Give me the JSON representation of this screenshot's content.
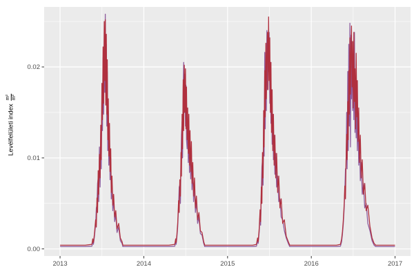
{
  "figure": {
    "background": "#FFFFFF",
    "panel_background": "#EBEBEB",
    "grid_color": "#FFFFFF",
    "tick_mark_color": "#333333",
    "tick_label_color": "#4D4D4D"
  },
  "y_axis": {
    "title_text": "Levélfelületi index",
    "title_frac_numerator": "m²",
    "title_frac_denominator": "m²",
    "tick_labels": [
      "0.00",
      "0.01",
      "0.02"
    ],
    "tick_values": [
      0,
      0.01,
      0.02
    ],
    "minor_values": [
      0.005,
      0.015,
      0.025
    ]
  },
  "x_axis": {
    "tick_labels": [
      "2013",
      "2014",
      "2015",
      "2016",
      "2017"
    ],
    "tick_values": [
      2013,
      2014,
      2015,
      2016,
      2017
    ],
    "minor_values": [
      2013.5,
      2014.5,
      2015.5,
      2016.5
    ]
  },
  "chart_data": {
    "type": "line",
    "title": "",
    "xlabel": "",
    "ylabel": "Levélfelületi index m²/m²",
    "legend": "none",
    "grid": true,
    "x_range_panel": [
      2012.81,
      2017.185
    ],
    "y_range_panel": [
      -0.00078,
      0.0266
    ],
    "xticks": [
      2013,
      2014,
      2015,
      2016,
      2017
    ],
    "yticks": [
      0,
      0.01,
      0.02
    ],
    "series_meta": [
      {
        "name": "red-line",
        "color": "#B0303E",
        "width": 1.3
      },
      {
        "name": "purple-line",
        "color": "#8E5C9E",
        "width": 1.3
      }
    ],
    "columns": [
      "time_decimal_year",
      "red_series",
      "purple_series"
    ],
    "points": [
      [
        2013.0,
        0.0004,
        0.00025
      ],
      [
        2013.15,
        0.0004,
        0.00025
      ],
      [
        2013.3,
        0.0004,
        0.00025
      ],
      [
        2013.38,
        0.0005,
        0.0003
      ],
      [
        2013.39,
        0.0011,
        0.0008
      ],
      [
        2013.398,
        0.0007,
        0.0005
      ],
      [
        2013.41,
        0.0016,
        0.0013
      ],
      [
        2013.425,
        0.0032,
        0.0027
      ],
      [
        2013.433,
        0.0024,
        0.0045
      ],
      [
        2013.44,
        0.0056,
        0.0048
      ],
      [
        2013.448,
        0.004,
        0.0072
      ],
      [
        2013.455,
        0.0086,
        0.0078
      ],
      [
        2013.462,
        0.006,
        0.0052
      ],
      [
        2013.47,
        0.0104,
        0.0112
      ],
      [
        2013.478,
        0.0078,
        0.0068
      ],
      [
        2013.486,
        0.0136,
        0.0128
      ],
      [
        2013.492,
        0.0098,
        0.0088
      ],
      [
        2013.5,
        0.0182,
        0.017
      ],
      [
        2013.506,
        0.0142,
        0.013
      ],
      [
        2013.514,
        0.0222,
        0.021
      ],
      [
        2013.52,
        0.016,
        0.0148
      ],
      [
        2013.528,
        0.025,
        0.0238
      ],
      [
        2013.534,
        0.0185,
        0.0172
      ],
      [
        2013.54,
        0.0252,
        0.0258
      ],
      [
        2013.546,
        0.0158,
        0.017
      ],
      [
        2013.552,
        0.0236,
        0.0225
      ],
      [
        2013.558,
        0.0148,
        0.0135
      ],
      [
        2013.564,
        0.0208,
        0.0195
      ],
      [
        2013.57,
        0.012,
        0.0108
      ],
      [
        2013.576,
        0.0165,
        0.0152
      ],
      [
        2013.582,
        0.0102,
        0.0092
      ],
      [
        2013.59,
        0.0138,
        0.0126
      ],
      [
        2013.597,
        0.0085,
        0.0076
      ],
      [
        2013.605,
        0.011,
        0.01
      ],
      [
        2013.612,
        0.0062,
        0.0055
      ],
      [
        2013.62,
        0.008,
        0.0072
      ],
      [
        2013.63,
        0.0048,
        0.0042
      ],
      [
        2013.64,
        0.006,
        0.0054
      ],
      [
        2013.652,
        0.0035,
        0.003
      ],
      [
        2013.665,
        0.0042,
        0.0037
      ],
      [
        2013.68,
        0.0022,
        0.0018
      ],
      [
        2013.7,
        0.0028,
        0.0024
      ],
      [
        2013.72,
        0.0012,
        0.0009
      ],
      [
        2013.74,
        0.0008,
        0.0006
      ],
      [
        2013.75,
        0.0004,
        0.00025
      ],
      [
        2013.85,
        0.0004,
        0.00025
      ],
      [
        2014.0,
        0.0004,
        0.00025
      ],
      [
        2014.15,
        0.0004,
        0.00025
      ],
      [
        2014.3,
        0.0004,
        0.00025
      ],
      [
        2014.37,
        0.0005,
        0.0003
      ],
      [
        2014.38,
        0.0011,
        0.0008
      ],
      [
        2014.386,
        0.0007,
        0.0005
      ],
      [
        2014.395,
        0.0016,
        0.0013
      ],
      [
        2014.405,
        0.0029,
        0.0025
      ],
      [
        2014.415,
        0.0053,
        0.0047
      ],
      [
        2014.422,
        0.004,
        0.0068
      ],
      [
        2014.43,
        0.0076,
        0.007
      ],
      [
        2014.437,
        0.0058,
        0.005
      ],
      [
        2014.444,
        0.0106,
        0.0098
      ],
      [
        2014.45,
        0.008,
        0.0125
      ],
      [
        2014.457,
        0.0148,
        0.014
      ],
      [
        2014.463,
        0.011,
        0.01
      ],
      [
        2014.47,
        0.0186,
        0.0176
      ],
      [
        2014.476,
        0.013,
        0.0205
      ],
      [
        2014.483,
        0.0202,
        0.015
      ],
      [
        2014.49,
        0.015,
        0.0192
      ],
      [
        2014.497,
        0.0198,
        0.0135
      ],
      [
        2014.503,
        0.0132,
        0.018
      ],
      [
        2014.51,
        0.0178,
        0.012
      ],
      [
        2014.517,
        0.012,
        0.011
      ],
      [
        2014.524,
        0.0155,
        0.0145
      ],
      [
        2014.531,
        0.0105,
        0.0095
      ],
      [
        2014.538,
        0.0148,
        0.0138
      ],
      [
        2014.545,
        0.0092,
        0.0084
      ],
      [
        2014.552,
        0.013,
        0.012
      ],
      [
        2014.56,
        0.0085,
        0.0077
      ],
      [
        2014.568,
        0.0118,
        0.0108
      ],
      [
        2014.576,
        0.0072,
        0.0065
      ],
      [
        2014.585,
        0.0095,
        0.0086
      ],
      [
        2014.595,
        0.0058,
        0.0052
      ],
      [
        2014.605,
        0.0078,
        0.007
      ],
      [
        2014.616,
        0.0045,
        0.004
      ],
      [
        2014.628,
        0.0058,
        0.0052
      ],
      [
        2014.642,
        0.0032,
        0.0028
      ],
      [
        2014.658,
        0.004,
        0.0035
      ],
      [
        2014.675,
        0.002,
        0.0017
      ],
      [
        2014.695,
        0.0018,
        0.0015
      ],
      [
        2014.715,
        0.0008,
        0.0006
      ],
      [
        2014.728,
        0.0004,
        0.00025
      ],
      [
        2014.85,
        0.0004,
        0.00025
      ],
      [
        2015.0,
        0.0004,
        0.00025
      ],
      [
        2015.15,
        0.0004,
        0.00025
      ],
      [
        2015.3,
        0.0004,
        0.00025
      ],
      [
        2015.345,
        0.0005,
        0.0003
      ],
      [
        2015.358,
        0.0012,
        0.0009
      ],
      [
        2015.366,
        0.0008,
        0.0006
      ],
      [
        2015.378,
        0.0023,
        0.0019
      ],
      [
        2015.388,
        0.0043,
        0.0038
      ],
      [
        2015.395,
        0.003,
        0.0026
      ],
      [
        2015.403,
        0.0068,
        0.0062
      ],
      [
        2015.41,
        0.005,
        0.009
      ],
      [
        2015.417,
        0.0106,
        0.0098
      ],
      [
        2015.424,
        0.0078,
        0.007
      ],
      [
        2015.431,
        0.0152,
        0.0142
      ],
      [
        2015.437,
        0.0112,
        0.0102
      ],
      [
        2015.444,
        0.0196,
        0.0216
      ],
      [
        2015.45,
        0.0145,
        0.0132
      ],
      [
        2015.457,
        0.0226,
        0.0215
      ],
      [
        2015.463,
        0.0165,
        0.0152
      ],
      [
        2015.47,
        0.0212,
        0.024
      ],
      [
        2015.477,
        0.0238,
        0.0175
      ],
      [
        2015.483,
        0.0175,
        0.0225
      ],
      [
        2015.49,
        0.0255,
        0.0195
      ],
      [
        2015.497,
        0.0185,
        0.0238
      ],
      [
        2015.504,
        0.0232,
        0.016
      ],
      [
        2015.511,
        0.015,
        0.0205
      ],
      [
        2015.518,
        0.0205,
        0.0138
      ],
      [
        2015.525,
        0.0128,
        0.0175
      ],
      [
        2015.532,
        0.0175,
        0.0115
      ],
      [
        2015.54,
        0.0108,
        0.0148
      ],
      [
        2015.548,
        0.0148,
        0.0098
      ],
      [
        2015.556,
        0.0092,
        0.0125
      ],
      [
        2015.565,
        0.0125,
        0.0082
      ],
      [
        2015.575,
        0.0078,
        0.0105
      ],
      [
        2015.586,
        0.0105,
        0.0068
      ],
      [
        2015.598,
        0.0062,
        0.008
      ],
      [
        2015.611,
        0.008,
        0.0052
      ],
      [
        2015.625,
        0.0045,
        0.0055
      ],
      [
        2015.64,
        0.0055,
        0.0035
      ],
      [
        2015.658,
        0.0028,
        0.0032
      ],
      [
        2015.678,
        0.0032,
        0.002
      ],
      [
        2015.7,
        0.0014,
        0.0012
      ],
      [
        2015.725,
        0.0008,
        0.0006
      ],
      [
        2015.742,
        0.0004,
        0.00025
      ],
      [
        2015.85,
        0.0004,
        0.00025
      ],
      [
        2016.0,
        0.0004,
        0.00025
      ],
      [
        2016.15,
        0.0004,
        0.00025
      ],
      [
        2016.3,
        0.0004,
        0.00025
      ],
      [
        2016.348,
        0.0005,
        0.0003
      ],
      [
        2016.362,
        0.0011,
        0.0008
      ],
      [
        2016.372,
        0.0019,
        0.0016
      ],
      [
        2016.382,
        0.0031,
        0.0027
      ],
      [
        2016.392,
        0.0049,
        0.0044
      ],
      [
        2016.4,
        0.0069,
        0.0063
      ],
      [
        2016.408,
        0.0055,
        0.0088
      ],
      [
        2016.415,
        0.0096,
        0.0088
      ],
      [
        2016.422,
        0.0126,
        0.015
      ],
      [
        2016.428,
        0.0098,
        0.0088
      ],
      [
        2016.435,
        0.0162,
        0.0195
      ],
      [
        2016.441,
        0.012,
        0.0108
      ],
      [
        2016.448,
        0.0196,
        0.0225
      ],
      [
        2016.454,
        0.0148,
        0.0135
      ],
      [
        2016.461,
        0.0232,
        0.0248
      ],
      [
        2016.467,
        0.017,
        0.0112
      ],
      [
        2016.474,
        0.0215,
        0.0235
      ],
      [
        2016.48,
        0.0245,
        0.0165
      ],
      [
        2016.487,
        0.0178,
        0.0228
      ],
      [
        2016.494,
        0.0228,
        0.0152
      ],
      [
        2016.501,
        0.0155,
        0.021
      ],
      [
        2016.508,
        0.0238,
        0.0142
      ],
      [
        2016.515,
        0.0162,
        0.0238
      ],
      [
        2016.522,
        0.0198,
        0.0128
      ],
      [
        2016.529,
        0.0132,
        0.0185
      ],
      [
        2016.536,
        0.0215,
        0.0122
      ],
      [
        2016.543,
        0.0145,
        0.0168
      ],
      [
        2016.55,
        0.0185,
        0.0108
      ],
      [
        2016.558,
        0.0118,
        0.0145
      ],
      [
        2016.566,
        0.0155,
        0.0092
      ],
      [
        2016.575,
        0.0095,
        0.012
      ],
      [
        2016.585,
        0.0125,
        0.0075
      ],
      [
        2016.596,
        0.0078,
        0.0095
      ],
      [
        2016.608,
        0.0098,
        0.006
      ],
      [
        2016.622,
        0.006,
        0.0072
      ],
      [
        2016.638,
        0.0072,
        0.0045
      ],
      [
        2016.655,
        0.0042,
        0.005
      ],
      [
        2016.675,
        0.0048,
        0.0028
      ],
      [
        2016.7,
        0.0025,
        0.002
      ],
      [
        2016.725,
        0.0012,
        0.0009
      ],
      [
        2016.75,
        0.0006,
        0.0004
      ],
      [
        2016.77,
        0.0004,
        0.00025
      ],
      [
        2016.88,
        0.0004,
        0.00025
      ],
      [
        2017.0,
        0.0004,
        0.00025
      ]
    ]
  }
}
